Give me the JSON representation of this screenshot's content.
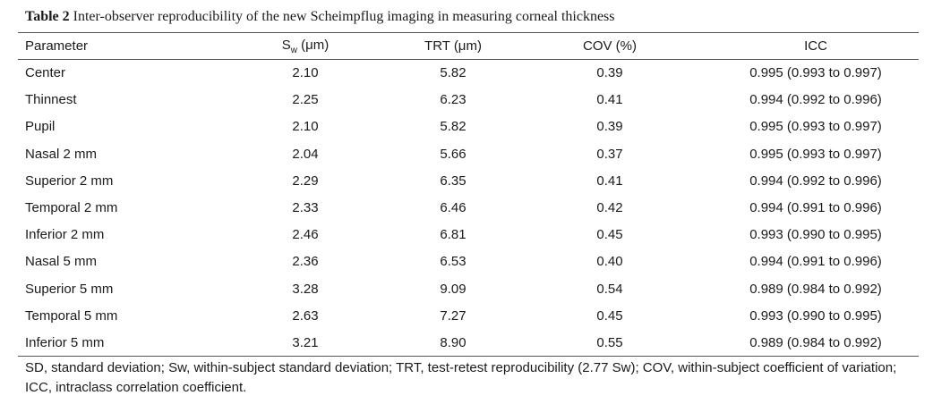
{
  "caption": {
    "label": "Table 2",
    "text": "Inter-observer reproducibility of the new Scheimpflug imaging in measuring corneal thickness"
  },
  "headers": {
    "parameter": "Parameter",
    "sw_base": "S",
    "sw_sub": "w",
    "sw_unit": " (μm)",
    "trt": "TRT (μm)",
    "cov": "COV (%)",
    "icc": "ICC"
  },
  "rows": [
    {
      "parameter": "Center",
      "sw": "2.10",
      "trt": "5.82",
      "cov": "0.39",
      "icc": "0.995 (0.993 to 0.997)"
    },
    {
      "parameter": "Thinnest",
      "sw": "2.25",
      "trt": "6.23",
      "cov": "0.41",
      "icc": "0.994 (0.992 to 0.996)"
    },
    {
      "parameter": "Pupil",
      "sw": "2.10",
      "trt": "5.82",
      "cov": "0.39",
      "icc": "0.995 (0.993 to 0.997)"
    },
    {
      "parameter": "Nasal 2 mm",
      "sw": "2.04",
      "trt": "5.66",
      "cov": "0.37",
      "icc": "0.995 (0.993 to 0.997)"
    },
    {
      "parameter": "Superior 2 mm",
      "sw": "2.29",
      "trt": "6.35",
      "cov": "0.41",
      "icc": "0.994 (0.992 to 0.996)"
    },
    {
      "parameter": "Temporal 2 mm",
      "sw": "2.33",
      "trt": "6.46",
      "cov": "0.42",
      "icc": "0.994 (0.991 to 0.996)"
    },
    {
      "parameter": "Inferior 2 mm",
      "sw": "2.46",
      "trt": "6.81",
      "cov": "0.45",
      "icc": "0.993 (0.990 to 0.995)"
    },
    {
      "parameter": "Nasal 5 mm",
      "sw": "2.36",
      "trt": "6.53",
      "cov": "0.40",
      "icc": "0.994 (0.991 to 0.996)"
    },
    {
      "parameter": "Superior 5 mm",
      "sw": "3.28",
      "trt": "9.09",
      "cov": "0.54",
      "icc": "0.989 (0.984 to 0.992)"
    },
    {
      "parameter": "Temporal 5 mm",
      "sw": "2.63",
      "trt": "7.27",
      "cov": "0.45",
      "icc": "0.993 (0.990 to 0.995)"
    },
    {
      "parameter": "Inferior 5 mm",
      "sw": "3.21",
      "trt": "8.90",
      "cov": "0.55",
      "icc": "0.989 (0.984 to 0.992)"
    }
  ],
  "footnote": "SD, standard deviation; Sw, within-subject standard deviation; TRT, test-retest reproducibility (2.77 Sw); COV, within-subject coefficient of variation; ICC, intraclass correlation coefficient."
}
